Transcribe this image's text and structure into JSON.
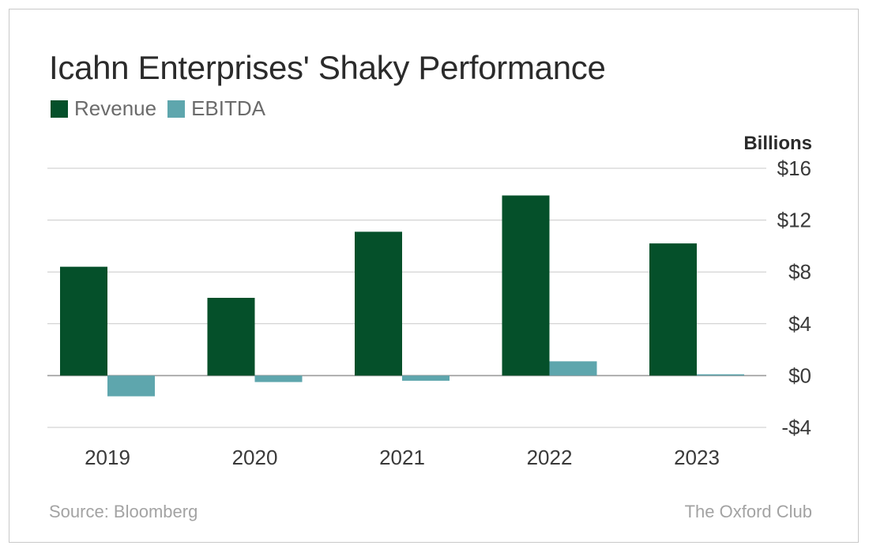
{
  "chart_data": {
    "type": "bar",
    "title": "Icahn Enterprises' Shaky Performance",
    "unit_label": "Billions",
    "categories": [
      "2019",
      "2020",
      "2021",
      "2022",
      "2023"
    ],
    "series": [
      {
        "name": "Revenue",
        "color": "#05502a",
        "values": [
          8.4,
          6.0,
          11.1,
          13.9,
          10.2
        ]
      },
      {
        "name": "EBITDA",
        "color": "#5ea6ad",
        "values": [
          -1.6,
          -0.5,
          -0.4,
          1.1,
          0.1
        ]
      }
    ],
    "ylim": [
      -4,
      16
    ],
    "yticks": [
      16,
      12,
      8,
      4,
      0,
      -4
    ],
    "ytick_labels": [
      "$16",
      "$12",
      "$8",
      "$4",
      "$0",
      "-$4"
    ],
    "ytick_side": "right",
    "grid": true,
    "legend_position": "top-left"
  },
  "footer": {
    "source": "Source: Bloomberg",
    "publisher": "The Oxford Club"
  }
}
